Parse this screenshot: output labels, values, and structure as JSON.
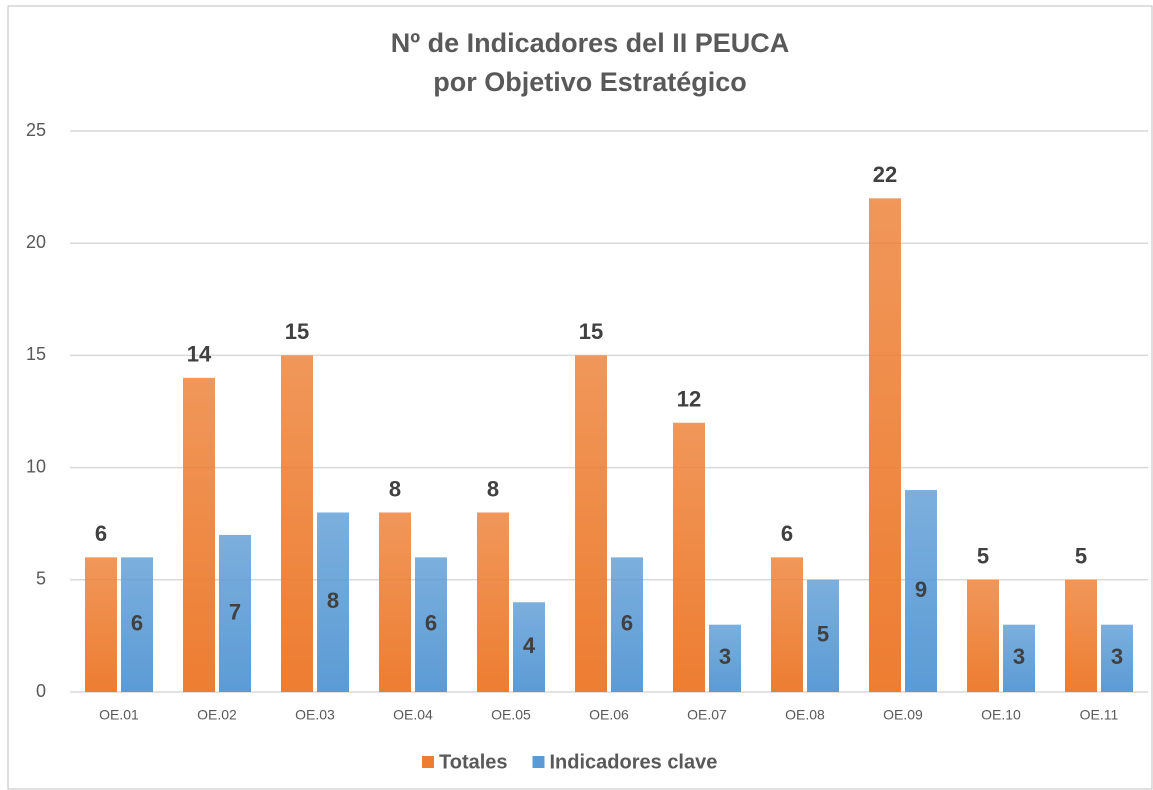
{
  "chart_data": {
    "type": "bar",
    "title": [
      "Nº de Indicadores del II PEUCA",
      "por Objetivo Estratégico"
    ],
    "categories": [
      "OE.01",
      "OE.02",
      "OE.03",
      "OE.04",
      "OE.05",
      "OE.06",
      "OE.07",
      "OE.08",
      "OE.09",
      "OE.10",
      "OE.11"
    ],
    "series": [
      {
        "name": "Totales",
        "color": "#ed7d31",
        "values": [
          6,
          14,
          15,
          8,
          8,
          15,
          12,
          6,
          22,
          5,
          5
        ]
      },
      {
        "name": "Indicadores clave",
        "color": "#5b9bd5",
        "values": [
          6,
          7,
          8,
          6,
          4,
          6,
          3,
          5,
          9,
          3,
          3
        ]
      }
    ],
    "ylim": [
      0,
      25
    ],
    "yticks": [
      0,
      5,
      10,
      15,
      20,
      25
    ],
    "grid": true,
    "legend": "bottom"
  }
}
